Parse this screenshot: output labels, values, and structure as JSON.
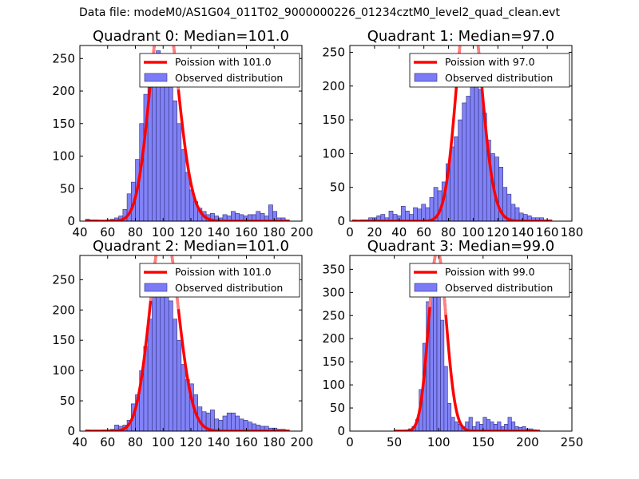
{
  "figure": {
    "suptitle": "Data file: modeM0/AS1G04_011T02_9000000226_01234cztM0_level2_quad_clean.evt"
  },
  "colors": {
    "bar_fill": "#7b7bf7",
    "bar_edge": "#2e2e7a",
    "curve": "#ff0000",
    "curve_peak": "#ff8080"
  },
  "chart_data": [
    {
      "type": "bar",
      "title": "Quadrant 0: Median=101.0",
      "xlim": [
        40,
        200
      ],
      "ylim": [
        0,
        270
      ],
      "xticks": [
        40,
        60,
        80,
        100,
        120,
        140,
        160,
        180,
        200
      ],
      "yticks": [
        0,
        50,
        100,
        150,
        200,
        250
      ],
      "legend": [
        "Poission with 101.0",
        "Observed distribution"
      ],
      "legend_location": "upper-right",
      "poisson_mean": 101.0,
      "bin_width": 3.0,
      "bins_start": [
        44,
        47,
        50,
        53,
        56,
        59,
        62,
        65,
        68,
        71,
        74,
        77,
        80,
        83,
        86,
        89,
        92,
        95,
        98,
        101,
        104,
        107,
        110,
        113,
        116,
        119,
        122,
        125,
        128,
        131,
        134,
        137,
        140,
        143,
        146,
        149,
        152,
        155,
        158,
        161,
        164,
        167,
        170,
        173,
        176,
        179,
        182,
        185,
        188
      ],
      "values": [
        3,
        2,
        2,
        1,
        1,
        2,
        3,
        5,
        8,
        18,
        42,
        60,
        95,
        150,
        195,
        230,
        250,
        262,
        255,
        240,
        215,
        185,
        150,
        110,
        75,
        48,
        30,
        20,
        15,
        10,
        12,
        8,
        5,
        10,
        8,
        15,
        12,
        10,
        8,
        10,
        10,
        15,
        12,
        8,
        25,
        15,
        5,
        5,
        2
      ]
    },
    {
      "type": "bar",
      "title": "Quadrant 1: Median=97.0",
      "xlim": [
        0,
        180
      ],
      "ylim": [
        0,
        260
      ],
      "xticks": [
        0,
        20,
        40,
        60,
        80,
        100,
        120,
        140,
        160,
        180
      ],
      "yticks": [
        0,
        50,
        100,
        150,
        200,
        250
      ],
      "legend": [
        "Poission with 97.0",
        "Observed distribution"
      ],
      "legend_location": "upper-right",
      "poisson_mean": 97.0,
      "bin_width": 3.3,
      "bins_start": [
        2,
        5.3,
        8.6,
        11.9,
        15.2,
        18.5,
        21.8,
        25.1,
        28.4,
        31.7,
        35,
        38.3,
        41.6,
        44.9,
        48.2,
        51.5,
        54.8,
        58.1,
        61.4,
        64.7,
        68,
        71.3,
        74.6,
        77.9,
        81.2,
        84.5,
        87.8,
        91.1,
        94.4,
        97.7,
        101,
        104.3,
        107.6,
        110.9,
        114.2,
        117.5,
        120.8,
        124.1,
        127.4,
        130.7,
        134,
        137.3,
        140.6,
        143.9,
        147.2,
        150.5,
        153.8,
        157.1,
        160.4
      ],
      "values": [
        2,
        1,
        2,
        2,
        5,
        5,
        8,
        10,
        5,
        15,
        10,
        8,
        22,
        15,
        10,
        20,
        18,
        25,
        20,
        35,
        50,
        45,
        58,
        85,
        110,
        125,
        150,
        175,
        185,
        210,
        215,
        195,
        160,
        120,
        100,
        95,
        80,
        50,
        40,
        25,
        20,
        12,
        10,
        8,
        5,
        5,
        5,
        2,
        2
      ]
    },
    {
      "type": "bar",
      "title": "Quadrant 2: Median=101.0",
      "xlim": [
        40,
        200
      ],
      "ylim": [
        0,
        290
      ],
      "xticks": [
        40,
        60,
        80,
        100,
        120,
        140,
        160,
        180,
        200
      ],
      "yticks": [
        0,
        50,
        100,
        150,
        200,
        250
      ],
      "legend": [
        "Poission with 101.0",
        "Observed distribution"
      ],
      "legend_location": "upper-right",
      "poisson_mean": 101.0,
      "bin_width": 3.0,
      "bins_start": [
        44,
        47,
        50,
        53,
        56,
        59,
        62,
        65,
        68,
        71,
        74,
        77,
        80,
        83,
        86,
        89,
        92,
        95,
        98,
        101,
        104,
        107,
        110,
        113,
        116,
        119,
        122,
        125,
        128,
        131,
        134,
        137,
        140,
        143,
        146,
        149,
        152,
        155,
        158,
        161,
        164,
        167,
        170,
        173,
        176,
        179,
        182,
        185,
        188
      ],
      "values": [
        2,
        1,
        1,
        1,
        2,
        2,
        3,
        10,
        8,
        10,
        18,
        45,
        60,
        100,
        140,
        185,
        230,
        255,
        265,
        250,
        215,
        185,
        150,
        110,
        85,
        78,
        60,
        40,
        32,
        30,
        35,
        20,
        18,
        25,
        30,
        30,
        25,
        20,
        18,
        15,
        12,
        10,
        8,
        8,
        5,
        5,
        3,
        3,
        2
      ]
    },
    {
      "type": "bar",
      "title": "Quadrant 3: Median=99.0",
      "xlim": [
        0,
        250
      ],
      "ylim": [
        0,
        380
      ],
      "xticks": [
        0,
        50,
        100,
        150,
        200,
        250
      ],
      "yticks": [
        0,
        50,
        100,
        150,
        200,
        250,
        300,
        350
      ],
      "legend": [
        "Poission with 99.0",
        "Observed distribution"
      ],
      "legend_location": "upper-right",
      "poisson_mean": 99.0,
      "bin_width": 4.0,
      "bins_start": [
        50,
        54,
        58,
        62,
        66,
        70,
        74,
        78,
        82,
        86,
        90,
        94,
        98,
        102,
        106,
        110,
        114,
        118,
        122,
        126,
        130,
        134,
        138,
        142,
        146,
        150,
        154,
        158,
        162,
        166,
        170,
        174,
        178,
        182,
        186,
        190,
        194,
        198,
        202,
        206,
        210
      ],
      "values": [
        2,
        2,
        2,
        2,
        5,
        10,
        25,
        90,
        190,
        280,
        330,
        340,
        320,
        240,
        140,
        60,
        30,
        20,
        15,
        10,
        20,
        30,
        10,
        20,
        15,
        30,
        25,
        20,
        15,
        20,
        10,
        15,
        30,
        20,
        10,
        8,
        10,
        5,
        5,
        3,
        2
      ]
    }
  ]
}
